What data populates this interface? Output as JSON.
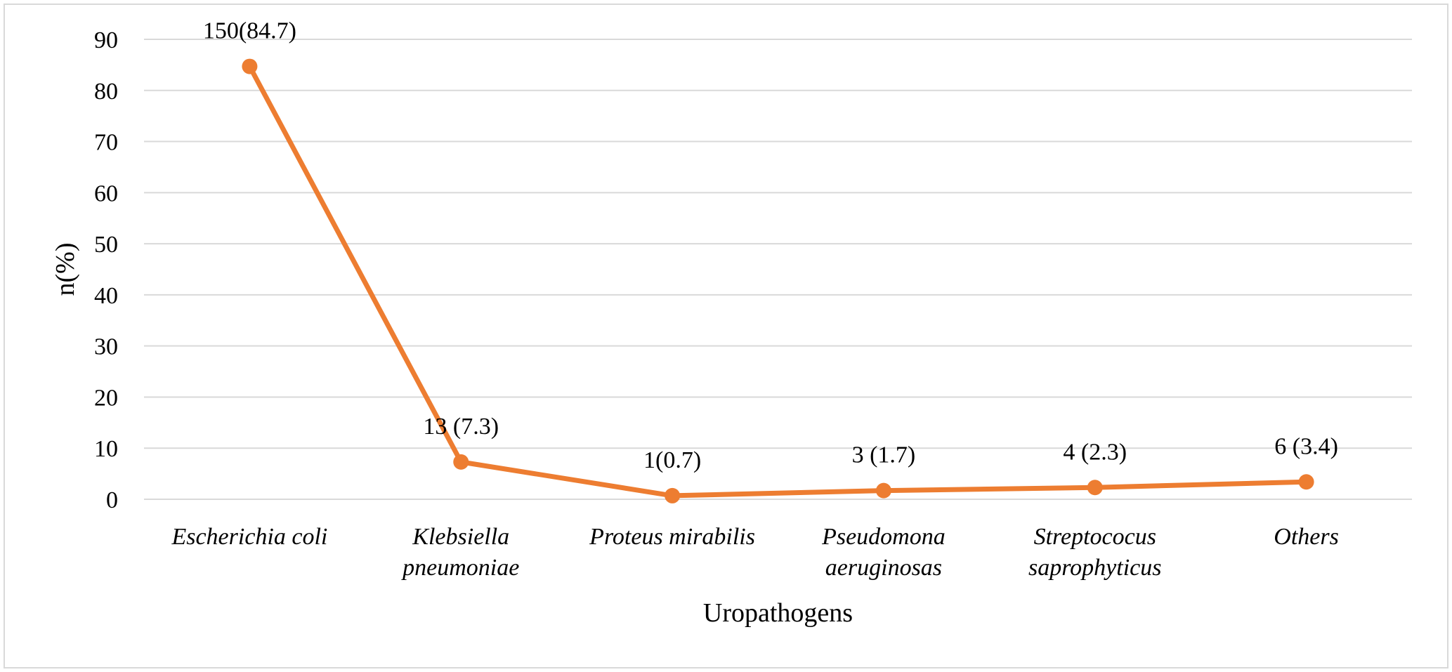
{
  "chart_data": {
    "type": "line",
    "title": "",
    "xlabel": "Uropathogens",
    "ylabel": "n(%)",
    "ylim": [
      0,
      90
    ],
    "yticks": [
      0,
      10,
      20,
      30,
      40,
      50,
      60,
      70,
      80,
      90
    ],
    "grid": true,
    "legend": "none",
    "categories": [
      [
        "Escherichia coli"
      ],
      [
        "Klebsiella",
        "pneumoniae"
      ],
      [
        "Proteus mirabilis"
      ],
      [
        "Pseudomona",
        "aeruginosas"
      ],
      [
        "Streptococus",
        "saprophyticus"
      ],
      [
        "Others"
      ]
    ],
    "series": [
      {
        "values": [
          84.7,
          7.3,
          0.7,
          1.7,
          2.3,
          3.4
        ],
        "data_labels": [
          "150(84.7)",
          "13 (7.3)",
          "1(0.7)",
          "3 (1.7)",
          "4 (2.3)",
          "6 (3.4)"
        ]
      }
    ],
    "colors": {
      "line": "#ED7D31",
      "grid": "#D9D9D9",
      "frame": "#D9D9D9"
    }
  }
}
